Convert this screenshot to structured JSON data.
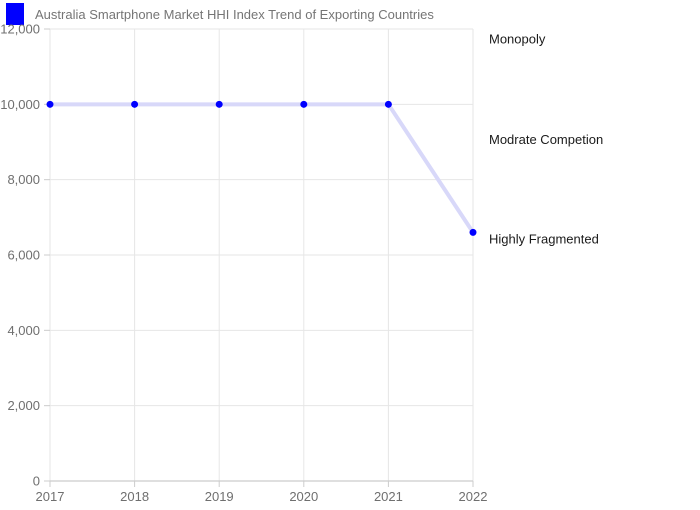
{
  "header": {
    "title": "Australia Smartphone Market HHI Index Trend of Exporting Countries",
    "legend_color": "#0000ff"
  },
  "chart_data": {
    "type": "line",
    "title": "Australia Smartphone Market HHI Index Trend of Exporting Countries",
    "categories": [
      "2017",
      "2018",
      "2019",
      "2020",
      "2021",
      "2022"
    ],
    "series": [
      {
        "name": "HHI Index",
        "values": [
          10000,
          10000,
          10000,
          10000,
          10000,
          6600
        ],
        "marker_color": "#0000ff",
        "line_color": "#d8d8f9"
      }
    ],
    "xlabel": "",
    "ylabel": "",
    "ylim": [
      0,
      12000
    ],
    "y_ticks": [
      0,
      2000,
      4000,
      6000,
      8000,
      10000,
      12000
    ],
    "y_tick_labels": [
      "0",
      "2,000",
      "4,000",
      "6,000",
      "8,000",
      "10,000",
      "12,000"
    ],
    "grid": true,
    "legend_position": "top-left",
    "annotations": [
      {
        "label": "Monopoly",
        "value": 11730
      },
      {
        "label": "Modrate Competion",
        "value": 9060
      },
      {
        "label": "Highly Fragmented",
        "value": 6425
      }
    ],
    "colors": {
      "grid": "#e6e6e6",
      "axis": "#cccccc",
      "axis_text": "#6f6f6f",
      "annotation_text": "#1a1a1a",
      "title_text": "#757575"
    }
  }
}
